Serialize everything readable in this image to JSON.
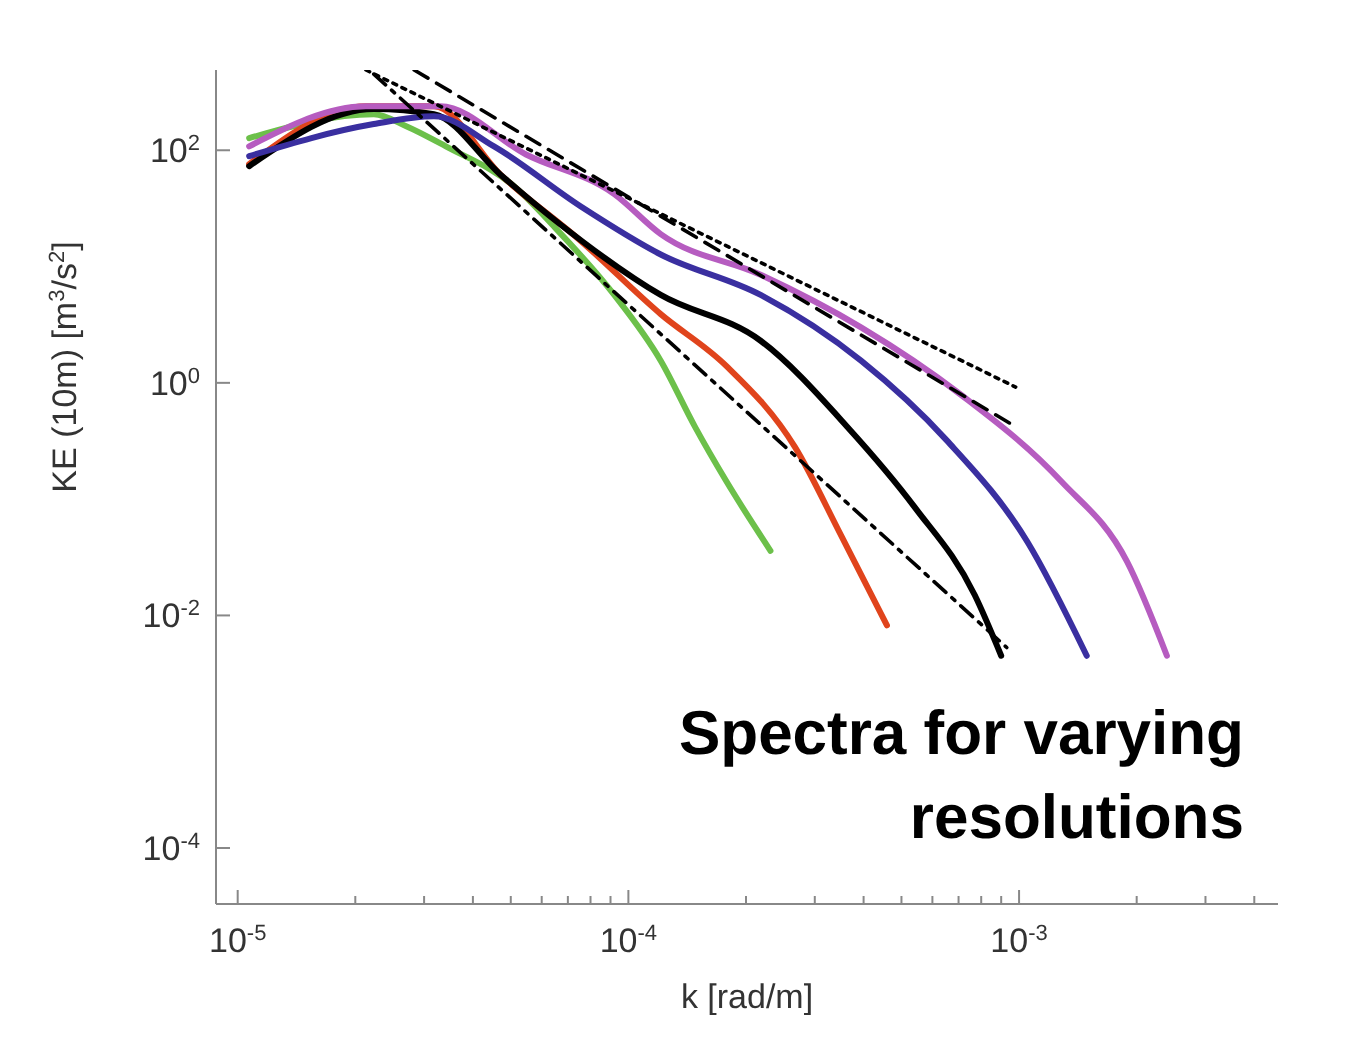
{
  "chart_data": {
    "type": "line",
    "xlabel": "k [rad/m]",
    "ylabel": "KE (10m) [m$^{3}$/s$^{2}$]",
    "log": "xy",
    "marker": "none",
    "xlim": [
      8.8e-06,
      0.0046
    ],
    "ylim": [
      3.3e-05,
      490
    ],
    "xticks": [
      {
        "value": 1e-05,
        "label": "10$^{-5}$"
      },
      {
        "value": 2e-05,
        "label": null
      },
      {
        "value": 3e-05,
        "label": null
      },
      {
        "value": 4e-05,
        "label": null
      },
      {
        "value": 5e-05,
        "label": null
      },
      {
        "value": 6e-05,
        "label": null
      },
      {
        "value": 7e-05,
        "label": null
      },
      {
        "value": 8e-05,
        "label": null
      },
      {
        "value": 9e-05,
        "label": null
      },
      {
        "value": 0.0001,
        "label": "10$^{-4}$"
      },
      {
        "value": 0.0002,
        "label": null
      },
      {
        "value": 0.0003,
        "label": null
      },
      {
        "value": 0.0004,
        "label": null
      },
      {
        "value": 0.0005,
        "label": null
      },
      {
        "value": 0.0006,
        "label": null
      },
      {
        "value": 0.0007,
        "label": null
      },
      {
        "value": 0.0008,
        "label": null
      },
      {
        "value": 0.0009,
        "label": null
      },
      {
        "value": 0.001,
        "label": "10$^{-3}$"
      },
      {
        "value": 0.002,
        "label": null
      },
      {
        "value": 0.003,
        "label": null
      },
      {
        "value": 0.004,
        "label": null
      }
    ],
    "yticks": [
      {
        "value": 0.0001,
        "label": "10$^{-4}$"
      },
      {
        "value": 0.01,
        "label": "10$^{-2}$"
      },
      {
        "value": 1,
        "label": "10$^{0}$"
      },
      {
        "value": 100,
        "label": "10$^{2}$"
      }
    ],
    "annotations": [
      "Spectra for varying resolutions"
    ],
    "series": [
      {
        "color": "#6cc04a",
        "x": [
          1.07e-05,
          2.23e-05,
          2.7e-05,
          3.41e-05,
          5.1e-05,
          6.46e-05,
          9.2e-05,
          0.000121,
          0.000148,
          0.000178,
          0.000231
        ],
        "values": [
          127,
          204,
          161,
          108,
          49,
          22,
          5.7,
          1.55,
          0.42,
          0.143,
          0.036
        ]
      },
      {
        "color": "#e0441c",
        "x": [
          1.07e-05,
          2.13e-05,
          3.18e-05,
          4.7e-05,
          7.54e-05,
          0.000121,
          0.000178,
          0.000267,
          0.00035,
          0.000459
        ],
        "values": [
          76,
          239,
          239,
          62,
          16.7,
          3.9,
          1.4,
          0.28,
          0.049,
          0.0082
        ]
      },
      {
        "color": "#000000",
        "x": [
          1.07e-05,
          2.23e-05,
          3.18e-05,
          4.7e-05,
          6.7e-05,
          0.000121,
          0.000218,
          0.000363,
          0.000541,
          0.00077,
          0.0009
        ],
        "values": [
          73,
          226,
          204,
          62,
          23,
          5.7,
          2.3,
          0.42,
          0.085,
          0.015,
          0.0045
        ]
      },
      {
        "color": "#3a2fa0",
        "x": [
          1.07e-05,
          2.23e-05,
          3.18e-05,
          4.53e-05,
          7.54e-05,
          0.000121,
          0.000218,
          0.000394,
          0.000653,
          0.00105,
          0.00149
        ],
        "values": [
          89,
          168,
          196,
          108,
          33,
          12.7,
          5.7,
          1.55,
          0.32,
          0.043,
          0.0045
        ]
      },
      {
        "color": "#b65cc0",
        "x": [
          1.07e-05,
          2.13e-05,
          3.3e-05,
          5.47e-05,
          9.2e-05,
          0.000121,
          0.000218,
          0.000394,
          0.00071,
          0.00128,
          0.00189,
          0.00239
        ],
        "values": [
          108,
          239,
          239,
          92,
          42,
          19,
          8.5,
          3.0,
          0.79,
          0.143,
          0.029,
          0.0045
        ]
      },
      {
        "color": "#000000",
        "line_style": "dotted",
        "x": [
          2.13e-05,
          0.00098
        ],
        "values": [
          490,
          0.92
        ]
      },
      {
        "color": "#000000",
        "line_style": "dashed",
        "x": [
          2.83e-05,
          0.00098
        ],
        "values": [
          490,
          0.42
        ]
      },
      {
        "color": "#000000",
        "line_style": "dashdot",
        "x": [
          2.23e-05,
          0.00093
        ],
        "values": [
          452,
          0.0053
        ]
      }
    ]
  }
}
